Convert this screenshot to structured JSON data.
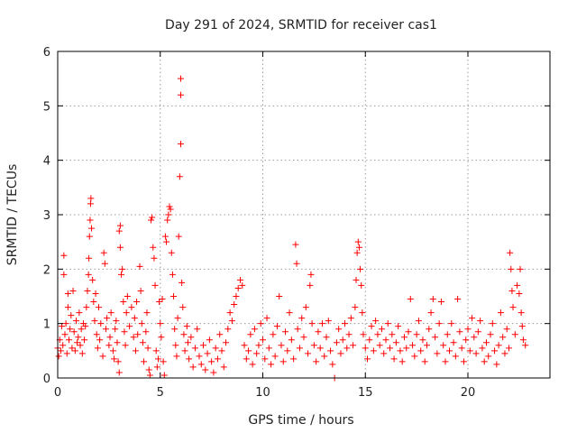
{
  "chart_data": {
    "type": "scatter",
    "title": "Day 291 of 2024, SRMTID for receiver cas1",
    "xlabel": "GPS time / hours",
    "ylabel": "SRMTID / TECUs",
    "xlim": [
      0,
      24
    ],
    "ylim": [
      0,
      6
    ],
    "x_ticks": [
      "0",
      "5",
      "10",
      "15",
      "20"
    ],
    "x_tick_values": [
      0,
      5,
      10,
      15,
      20
    ],
    "y_ticks": [
      "0",
      "1",
      "2",
      "3",
      "4",
      "5",
      "6"
    ],
    "y_tick_values": [
      0,
      1,
      2,
      3,
      4,
      5,
      6
    ],
    "grid": true,
    "marker": "plus",
    "color": "#ff0000",
    "series": [
      {
        "name": "SRMTID",
        "points": [
          [
            0.0,
            0.55
          ],
          [
            0.05,
            0.4
          ],
          [
            0.1,
            0.7
          ],
          [
            0.15,
            0.5
          ],
          [
            0.2,
            0.95
          ],
          [
            0.25,
            0.6
          ],
          [
            0.3,
            1.9
          ],
          [
            0.3,
            2.25
          ],
          [
            0.35,
            0.8
          ],
          [
            0.4,
            1.0
          ],
          [
            0.45,
            0.45
          ],
          [
            0.5,
            1.55
          ],
          [
            0.5,
            1.3
          ],
          [
            0.55,
            0.7
          ],
          [
            0.6,
            0.9
          ],
          [
            0.65,
            1.15
          ],
          [
            0.7,
            0.55
          ],
          [
            0.75,
            1.6
          ],
          [
            0.8,
            0.85
          ],
          [
            0.85,
            0.5
          ],
          [
            0.9,
            1.05
          ],
          [
            0.95,
            0.65
          ],
          [
            1.0,
            0.75
          ],
          [
            1.05,
            1.2
          ],
          [
            1.1,
            0.6
          ],
          [
            1.15,
            0.9
          ],
          [
            1.2,
            0.45
          ],
          [
            1.25,
            1.0
          ],
          [
            1.3,
            0.7
          ],
          [
            1.35,
            0.95
          ],
          [
            1.4,
            1.3
          ],
          [
            1.45,
            1.6
          ],
          [
            1.5,
            1.9
          ],
          [
            1.52,
            2.2
          ],
          [
            1.55,
            2.6
          ],
          [
            1.58,
            2.9
          ],
          [
            1.6,
            3.2
          ],
          [
            1.62,
            3.3
          ],
          [
            1.65,
            2.75
          ],
          [
            1.7,
            1.8
          ],
          [
            1.75,
            1.4
          ],
          [
            1.8,
            1.05
          ],
          [
            1.85,
            1.55
          ],
          [
            1.9,
            0.8
          ],
          [
            1.95,
            0.55
          ],
          [
            2.0,
            1.3
          ],
          [
            2.05,
            0.7
          ],
          [
            2.1,
            1.0
          ],
          [
            2.2,
            0.4
          ],
          [
            2.25,
            2.3
          ],
          [
            2.3,
            2.1
          ],
          [
            2.35,
            0.9
          ],
          [
            2.4,
            1.1
          ],
          [
            2.5,
            0.6
          ],
          [
            2.55,
            0.75
          ],
          [
            2.6,
            1.2
          ],
          [
            2.7,
            0.5
          ],
          [
            2.75,
            0.35
          ],
          [
            2.8,
            0.9
          ],
          [
            2.85,
            1.05
          ],
          [
            2.9,
            0.65
          ],
          [
            2.95,
            0.3
          ],
          [
            3.0,
            0.1
          ],
          [
            3.0,
            2.7
          ],
          [
            3.05,
            2.8
          ],
          [
            3.05,
            2.4
          ],
          [
            3.1,
            1.9
          ],
          [
            3.15,
            2.0
          ],
          [
            3.2,
            1.4
          ],
          [
            3.25,
            0.85
          ],
          [
            3.3,
            0.6
          ],
          [
            3.35,
            1.2
          ],
          [
            3.4,
            1.5
          ],
          [
            3.5,
            0.95
          ],
          [
            3.6,
            1.3
          ],
          [
            3.7,
            0.75
          ],
          [
            3.75,
            1.1
          ],
          [
            3.8,
            0.5
          ],
          [
            3.85,
            1.4
          ],
          [
            3.9,
            0.8
          ],
          [
            4.0,
            2.05
          ],
          [
            4.05,
            1.6
          ],
          [
            4.1,
            1.0
          ],
          [
            4.15,
            0.65
          ],
          [
            4.2,
            0.3
          ],
          [
            4.3,
            0.85
          ],
          [
            4.35,
            1.2
          ],
          [
            4.4,
            0.55
          ],
          [
            4.45,
            0.15
          ],
          [
            4.5,
            0.05
          ],
          [
            4.55,
            2.9
          ],
          [
            4.6,
            2.95
          ],
          [
            4.65,
            2.4
          ],
          [
            4.7,
            2.2
          ],
          [
            4.75,
            1.7
          ],
          [
            4.8,
            0.5
          ],
          [
            4.85,
            0.2
          ],
          [
            4.9,
            0.35
          ],
          [
            4.95,
            1.4
          ],
          [
            5.0,
            1.0
          ],
          [
            5.05,
            0.75
          ],
          [
            5.1,
            1.45
          ],
          [
            5.15,
            0.3
          ],
          [
            5.2,
            0.05
          ],
          [
            5.25,
            2.6
          ],
          [
            5.3,
            2.5
          ],
          [
            5.35,
            2.9
          ],
          [
            5.4,
            3.0
          ],
          [
            5.45,
            3.15
          ],
          [
            5.5,
            3.1
          ],
          [
            5.55,
            2.3
          ],
          [
            5.6,
            1.9
          ],
          [
            5.65,
            1.5
          ],
          [
            5.7,
            0.9
          ],
          [
            5.75,
            0.6
          ],
          [
            5.8,
            0.4
          ],
          [
            5.85,
            1.1
          ],
          [
            5.9,
            2.6
          ],
          [
            5.95,
            3.7
          ],
          [
            6.0,
            4.3
          ],
          [
            6.0,
            5.2
          ],
          [
            6.0,
            5.5
          ],
          [
            6.05,
            1.75
          ],
          [
            6.1,
            1.3
          ],
          [
            6.15,
            0.8
          ],
          [
            6.2,
            0.5
          ],
          [
            6.3,
            0.95
          ],
          [
            6.35,
            0.65
          ],
          [
            6.4,
            0.35
          ],
          [
            6.5,
            0.75
          ],
          [
            6.6,
            0.2
          ],
          [
            6.7,
            0.55
          ],
          [
            6.8,
            0.9
          ],
          [
            6.9,
            0.4
          ],
          [
            7.0,
            0.25
          ],
          [
            7.1,
            0.6
          ],
          [
            7.2,
            0.15
          ],
          [
            7.3,
            0.45
          ],
          [
            7.4,
            0.7
          ],
          [
            7.5,
            0.3
          ],
          [
            7.6,
            0.1
          ],
          [
            7.7,
            0.55
          ],
          [
            7.8,
            0.35
          ],
          [
            7.9,
            0.8
          ],
          [
            8.0,
            0.5
          ],
          [
            8.1,
            0.2
          ],
          [
            8.2,
            0.65
          ],
          [
            8.3,
            0.9
          ],
          [
            8.4,
            1.2
          ],
          [
            8.5,
            1.05
          ],
          [
            8.6,
            1.35
          ],
          [
            8.7,
            1.5
          ],
          [
            8.8,
            1.65
          ],
          [
            8.9,
            1.8
          ],
          [
            9.0,
            1.7
          ],
          [
            9.1,
            0.6
          ],
          [
            9.2,
            0.35
          ],
          [
            9.3,
            0.5
          ],
          [
            9.4,
            0.8
          ],
          [
            9.5,
            0.25
          ],
          [
            9.6,
            0.9
          ],
          [
            9.7,
            0.45
          ],
          [
            9.8,
            0.6
          ],
          [
            9.9,
            1.0
          ],
          [
            10.0,
            0.7
          ],
          [
            10.1,
            0.35
          ],
          [
            10.2,
            1.1
          ],
          [
            10.3,
            0.55
          ],
          [
            10.4,
            0.25
          ],
          [
            10.5,
            0.8
          ],
          [
            10.6,
            0.4
          ],
          [
            10.7,
            0.95
          ],
          [
            10.8,
            1.5
          ],
          [
            10.9,
            0.6
          ],
          [
            11.0,
            0.3
          ],
          [
            11.1,
            0.85
          ],
          [
            11.2,
            0.5
          ],
          [
            11.3,
            1.2
          ],
          [
            11.4,
            0.7
          ],
          [
            11.5,
            0.35
          ],
          [
            11.6,
            2.45
          ],
          [
            11.65,
            2.1
          ],
          [
            11.7,
            0.9
          ],
          [
            11.8,
            0.55
          ],
          [
            11.9,
            1.1
          ],
          [
            12.0,
            0.75
          ],
          [
            12.1,
            1.3
          ],
          [
            12.2,
            0.45
          ],
          [
            12.3,
            1.7
          ],
          [
            12.35,
            1.9
          ],
          [
            12.4,
            1.0
          ],
          [
            12.5,
            0.6
          ],
          [
            12.6,
            0.3
          ],
          [
            12.7,
            0.85
          ],
          [
            12.8,
            0.55
          ],
          [
            12.9,
            1.0
          ],
          [
            13.0,
            0.4
          ],
          [
            13.1,
            0.75
          ],
          [
            13.2,
            1.05
          ],
          [
            13.3,
            0.5
          ],
          [
            13.4,
            0.25
          ],
          [
            13.5,
            0.0
          ],
          [
            13.6,
            0.65
          ],
          [
            13.7,
            0.9
          ],
          [
            13.8,
            0.45
          ],
          [
            13.9,
            0.7
          ],
          [
            14.0,
            1.0
          ],
          [
            14.1,
            0.55
          ],
          [
            14.2,
            0.8
          ],
          [
            14.3,
            1.1
          ],
          [
            14.4,
            0.6
          ],
          [
            14.5,
            1.3
          ],
          [
            14.55,
            1.8
          ],
          [
            14.6,
            2.3
          ],
          [
            14.65,
            2.5
          ],
          [
            14.7,
            2.4
          ],
          [
            14.75,
            2.0
          ],
          [
            14.8,
            1.7
          ],
          [
            14.85,
            1.2
          ],
          [
            14.9,
            0.8
          ],
          [
            15.0,
            0.55
          ],
          [
            15.1,
            0.35
          ],
          [
            15.2,
            0.7
          ],
          [
            15.3,
            0.95
          ],
          [
            15.4,
            0.5
          ],
          [
            15.5,
            1.05
          ],
          [
            15.6,
            0.8
          ],
          [
            15.7,
            0.6
          ],
          [
            15.8,
            0.9
          ],
          [
            15.9,
            0.45
          ],
          [
            16.0,
            0.7
          ],
          [
            16.1,
            1.0
          ],
          [
            16.2,
            0.55
          ],
          [
            16.3,
            0.8
          ],
          [
            16.4,
            0.35
          ],
          [
            16.5,
            0.65
          ],
          [
            16.6,
            0.95
          ],
          [
            16.7,
            0.5
          ],
          [
            16.8,
            0.3
          ],
          [
            16.9,
            0.75
          ],
          [
            17.0,
            0.55
          ],
          [
            17.1,
            0.85
          ],
          [
            17.2,
            1.45
          ],
          [
            17.3,
            0.6
          ],
          [
            17.4,
            0.4
          ],
          [
            17.5,
            0.8
          ],
          [
            17.6,
            1.05
          ],
          [
            17.7,
            0.5
          ],
          [
            17.8,
            0.7
          ],
          [
            17.9,
            0.3
          ],
          [
            18.0,
            0.6
          ],
          [
            18.1,
            0.9
          ],
          [
            18.2,
            1.2
          ],
          [
            18.3,
            1.45
          ],
          [
            18.4,
            0.75
          ],
          [
            18.5,
            0.45
          ],
          [
            18.6,
            1.0
          ],
          [
            18.7,
            1.4
          ],
          [
            18.8,
            0.6
          ],
          [
            18.9,
            0.3
          ],
          [
            19.0,
            0.8
          ],
          [
            19.1,
            0.5
          ],
          [
            19.2,
            1.0
          ],
          [
            19.3,
            0.65
          ],
          [
            19.4,
            0.4
          ],
          [
            19.5,
            1.45
          ],
          [
            19.6,
            0.85
          ],
          [
            19.7,
            0.55
          ],
          [
            19.8,
            0.3
          ],
          [
            19.9,
            0.7
          ],
          [
            20.0,
            0.9
          ],
          [
            20.1,
            0.5
          ],
          [
            20.2,
            1.1
          ],
          [
            20.3,
            0.75
          ],
          [
            20.4,
            0.45
          ],
          [
            20.5,
            0.85
          ],
          [
            20.6,
            1.05
          ],
          [
            20.7,
            0.55
          ],
          [
            20.8,
            0.3
          ],
          [
            20.9,
            0.65
          ],
          [
            21.0,
            0.4
          ],
          [
            21.1,
            0.8
          ],
          [
            21.2,
            1.0
          ],
          [
            21.3,
            0.5
          ],
          [
            21.4,
            0.25
          ],
          [
            21.5,
            0.6
          ],
          [
            21.6,
            1.2
          ],
          [
            21.7,
            0.75
          ],
          [
            21.8,
            0.45
          ],
          [
            21.9,
            0.9
          ],
          [
            22.0,
            0.55
          ],
          [
            22.05,
            2.3
          ],
          [
            22.1,
            2.0
          ],
          [
            22.15,
            1.6
          ],
          [
            22.2,
            1.3
          ],
          [
            22.3,
            0.8
          ],
          [
            22.4,
            1.7
          ],
          [
            22.5,
            1.55
          ],
          [
            22.55,
            2.0
          ],
          [
            22.6,
            1.2
          ],
          [
            22.65,
            0.95
          ],
          [
            22.7,
            0.7
          ],
          [
            22.8,
            0.6
          ]
        ]
      }
    ]
  }
}
